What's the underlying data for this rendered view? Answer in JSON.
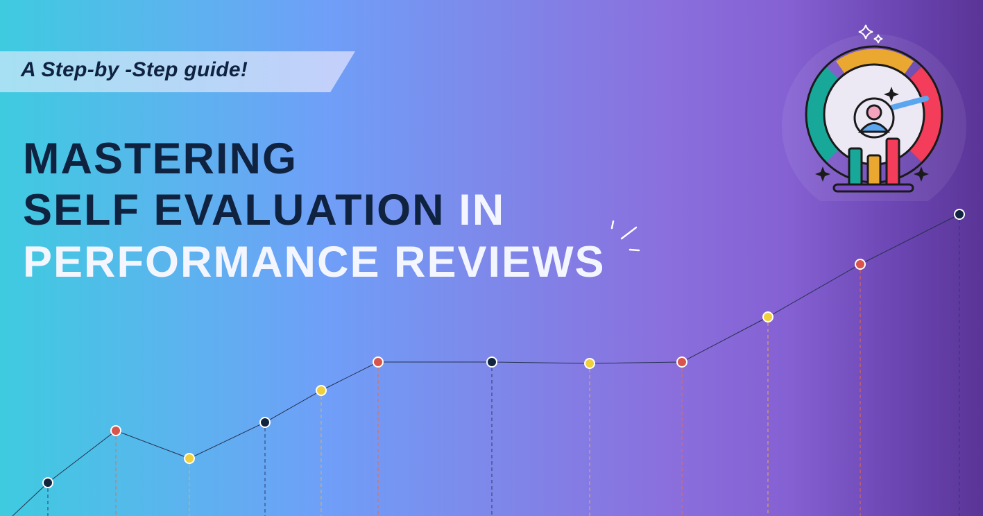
{
  "banner": {
    "tagline": "A Step-by -Step guide!"
  },
  "headline": {
    "line1": "MASTERING",
    "line2_dark": "SELF EVALUATION",
    "line2_light": "IN",
    "line3": "PERFORMANCE REVIEWS"
  },
  "colors": {
    "dark_text": "#0f2240",
    "light_text": "#f4f6ff",
    "point_navy": "#12253f",
    "point_red": "#d9544c",
    "point_yellow": "#f0cf3c"
  },
  "illustration": {
    "icon": "performance-gauge-user-magnifier-bar-chart-icon"
  },
  "decorative_line_chart": {
    "point_colors": [
      "navy",
      "red",
      "yellow",
      "navy",
      "yellow",
      "red",
      "navy",
      "yellow",
      "red",
      "yellow",
      "red",
      "navy"
    ]
  }
}
